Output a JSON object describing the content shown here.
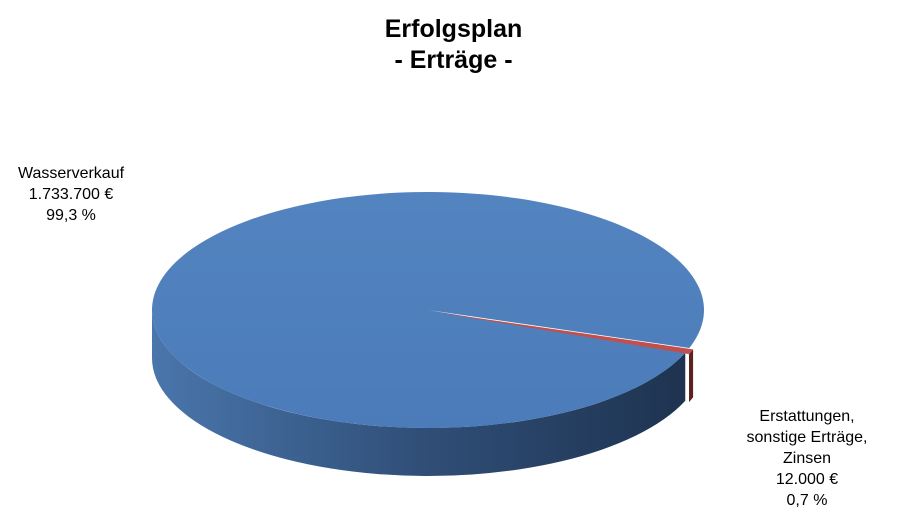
{
  "chart_data": {
    "type": "pie",
    "title": [
      "Erfolgsplan",
      "- Erträge -"
    ],
    "slices": [
      {
        "name": "Wasserverkauf",
        "value": 1733700,
        "value_label": "1.733.700 €",
        "percent": 99.3,
        "percent_label": "99,3 %",
        "label_lines": [
          "Wasserverkauf"
        ],
        "color": "#4f81bd"
      },
      {
        "name": "Erstattungen, sonstige Erträge, Zinsen",
        "value": 12000,
        "value_label": "12.000 €",
        "percent": 0.7,
        "percent_label": "0,7 %",
        "label_lines": [
          "Erstattungen,",
          "sonstige Erträge,",
          "Zinsen"
        ],
        "color": "#c0504d"
      }
    ],
    "style": "3d",
    "legend": "none"
  }
}
